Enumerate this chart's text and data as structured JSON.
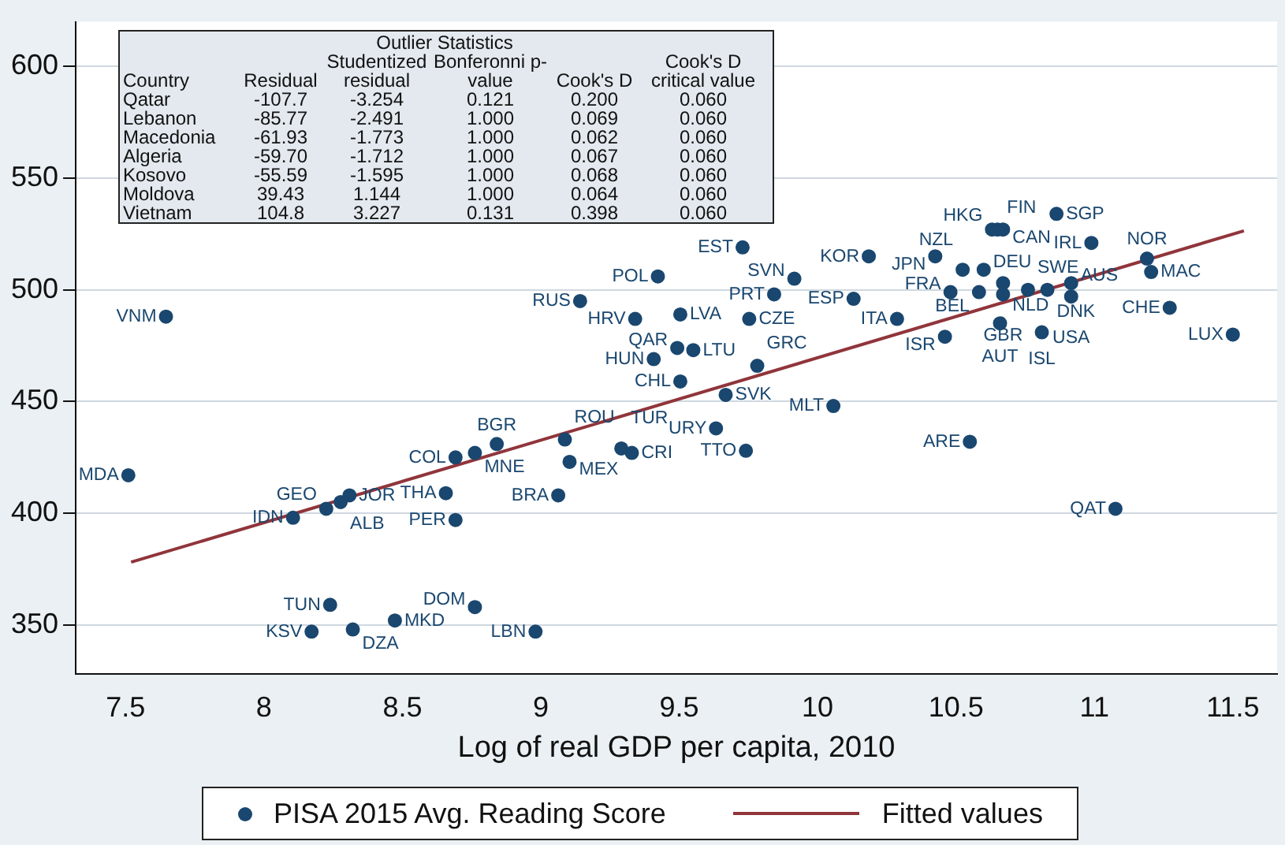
{
  "chart_data": {
    "type": "scatter",
    "xlabel": "Log of real GDP per capita, 2010",
    "xlim": [
      7.32,
      11.66
    ],
    "xticks": [
      7.5,
      8,
      8.5,
      9,
      9.5,
      10,
      10.5,
      11,
      11.5
    ],
    "ylim": [
      328,
      620
    ],
    "yticks": [
      350,
      400,
      450,
      500,
      550,
      600
    ],
    "grid": "y",
    "legend": "bottom",
    "marker": "circle",
    "annotations": [
      "Outlier Statistics",
      "Country",
      "Residual",
      "Studentized residual",
      "Bonferonni p-value",
      "Cook's D",
      "Cook's D critical value",
      "Qatar",
      "-107.7",
      "-3.254",
      "0.121",
      "0.200",
      "0.060",
      "Lebanon",
      "-85.77",
      "-2.491",
      "1.000",
      "0.069",
      "0.060",
      "Macedonia",
      "-61.93",
      "-1.773",
      "1.000",
      "0.062",
      "0.060",
      "Algeria",
      "-59.70",
      "-1.712",
      "1.000",
      "0.067",
      "0.060",
      "Kosovo",
      "-55.59",
      "-1.595",
      "1.000",
      "0.068",
      "0.060",
      "Moldova",
      "39.43",
      "1.144",
      "1.000",
      "0.064",
      "0.060",
      "Vietnam",
      "104.8",
      "3.227",
      "0.131",
      "0.398",
      "0.060"
    ],
    "series": [
      {
        "name": "PISA 2015 Avg. Reading Score",
        "type": "scatter",
        "color": "#1a476f",
        "x": [
          7.646,
          7.51,
          8.105,
          8.225,
          8.277,
          8.309,
          8.239,
          8.172,
          8.321,
          8.473,
          8.762,
          8.981,
          8.692,
          8.657,
          9.063,
          8.692,
          8.762,
          8.841,
          9.087,
          9.104,
          9.291,
          9.329,
          9.633,
          9.741,
          9.668,
          9.504,
          10.057,
          9.782,
          9.408,
          9.493,
          9.551,
          9.341,
          9.504,
          9.753,
          9.142,
          9.423,
          9.729,
          9.916,
          9.843,
          10.13,
          10.287,
          10.46,
          10.185,
          10.425,
          10.524,
          10.6,
          10.48,
          10.583,
          10.67,
          10.67,
          10.76,
          10.83,
          10.916,
          10.916,
          10.659,
          10.81,
          11.272,
          11.5,
          11.205,
          11.19,
          10.989,
          10.863,
          10.63,
          10.65,
          10.67,
          10.55,
          11.076
        ],
        "values": [
          488,
          417,
          398,
          402,
          405,
          408,
          359,
          347,
          348,
          352,
          358,
          347,
          397,
          409,
          408,
          425,
          427,
          431,
          433,
          423,
          429,
          427,
          438,
          428,
          453,
          459,
          448,
          466,
          469,
          474,
          473,
          487,
          489,
          487,
          495,
          506,
          519,
          505,
          498,
          496,
          487,
          479,
          515,
          515,
          509,
          509,
          499,
          499,
          503,
          498,
          500,
          500,
          503,
          497,
          485,
          481,
          492,
          480,
          508,
          514,
          521,
          534,
          527,
          527,
          527,
          432,
          402
        ],
        "value_labels": [
          "VNM",
          "MDA",
          "IDN",
          "GEO",
          "ALB",
          "JOR",
          "TUN",
          "KSV",
          "DZA",
          "MKD",
          "DOM",
          "LBN",
          "PER",
          "THA",
          "BRA",
          "COL",
          "MNE",
          "BGR",
          "ROU",
          "MEX",
          "TUR",
          "CRI",
          "URY",
          "TTO",
          "SVK",
          "CHL",
          "MLT",
          "GRC",
          "HUN",
          "QAR",
          "LTU",
          "HRV",
          "LVA",
          "CZE",
          "RUS",
          "POL",
          "EST",
          "SVN",
          "PRT",
          "ESP",
          "ITA",
          "ISR",
          "KOR",
          "JPN",
          "NZL",
          "DEU",
          "FRA",
          "BEL",
          "NLD",
          "GBR",
          "SWE",
          "DNK",
          "AUS",
          "USA",
          "AUT",
          "ISL",
          "CHE",
          "LUX",
          "MAC",
          "NOR",
          "IRL",
          "SGP",
          "HKG",
          "FIN",
          "CAN",
          "ARE",
          "QAT"
        ]
      },
      {
        "name": "Fitted values",
        "type": "line",
        "color": "#90353b",
        "marker": "none",
        "x": [
          7.52,
          11.54
        ],
        "values": [
          378.1,
          526.4
        ]
      }
    ]
  }
}
